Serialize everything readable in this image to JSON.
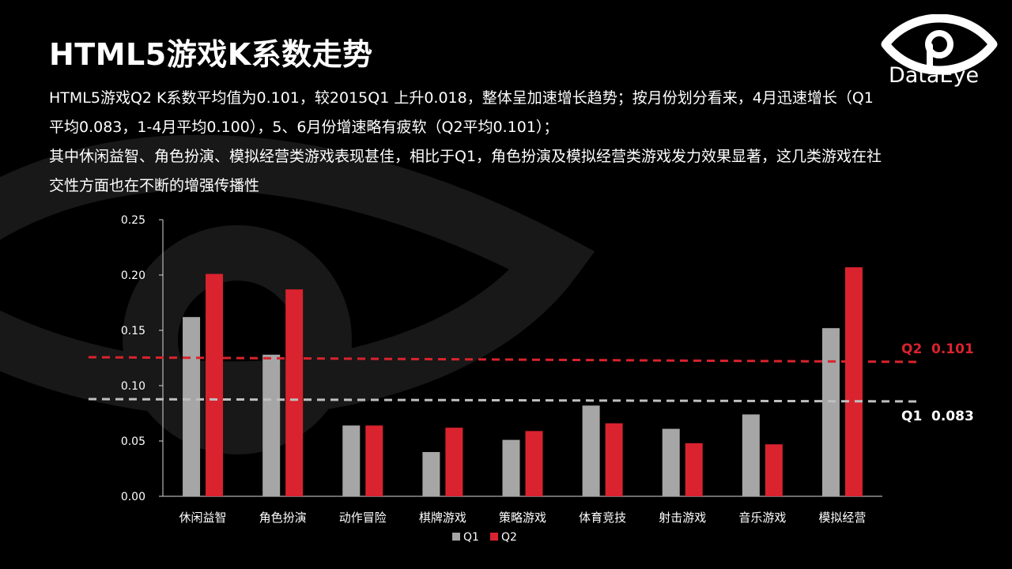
{
  "header": {
    "title": "HTML5游戏K系数走势",
    "paragraphs": [
      "HTML5游戏Q2 K系数平均值为0.101，较2015Q1 上升0.018，整体呈加速增长趋势；按月份划分看来，4月迅速增长（Q1平均0.083，1-4月平均0.100），5、6月份增速略有疲软（Q2平均0.101）；",
      "其中休闲益智、角色扮演、模拟经营类游戏表现甚佳，相比于Q1，角色扮演及模拟经营类游戏发力效果显著，这几类游戏在社交性方面也在不断的增强传播性"
    ]
  },
  "logo": {
    "text": "DataEye",
    "icon": "eye-logo-icon"
  },
  "colors": {
    "q1": "#a6a6a6",
    "q2": "#d9232e",
    "axis": "#d9d9d9"
  },
  "chart_data": {
    "type": "bar",
    "categories": [
      "休闲益智",
      "角色扮演",
      "动作冒险",
      "棋牌游戏",
      "策略游戏",
      "体育竞技",
      "射击游戏",
      "音乐游戏",
      "模拟经营"
    ],
    "series": [
      {
        "name": "Q1",
        "values": [
          0.162,
          0.128,
          0.064,
          0.04,
          0.051,
          0.082,
          0.061,
          0.074,
          0.152
        ]
      },
      {
        "name": "Q2",
        "values": [
          0.201,
          0.187,
          0.064,
          0.062,
          0.059,
          0.066,
          0.048,
          0.047,
          0.207
        ]
      }
    ],
    "ylim": [
      0,
      0.25
    ],
    "yticks": [
      "0.00",
      "0.05",
      "0.10",
      "0.15",
      "0.20",
      "0.25"
    ],
    "reference_lines": [
      {
        "name": "Q2",
        "label": "Q2",
        "value_label": "0.101",
        "style": "dashed"
      },
      {
        "name": "Q1",
        "label": "Q1",
        "value_label": "0.083",
        "style": "dashed"
      }
    ],
    "legend": {
      "position": "bottom",
      "entries": [
        "Q1",
        "Q2"
      ]
    },
    "grid": false
  }
}
